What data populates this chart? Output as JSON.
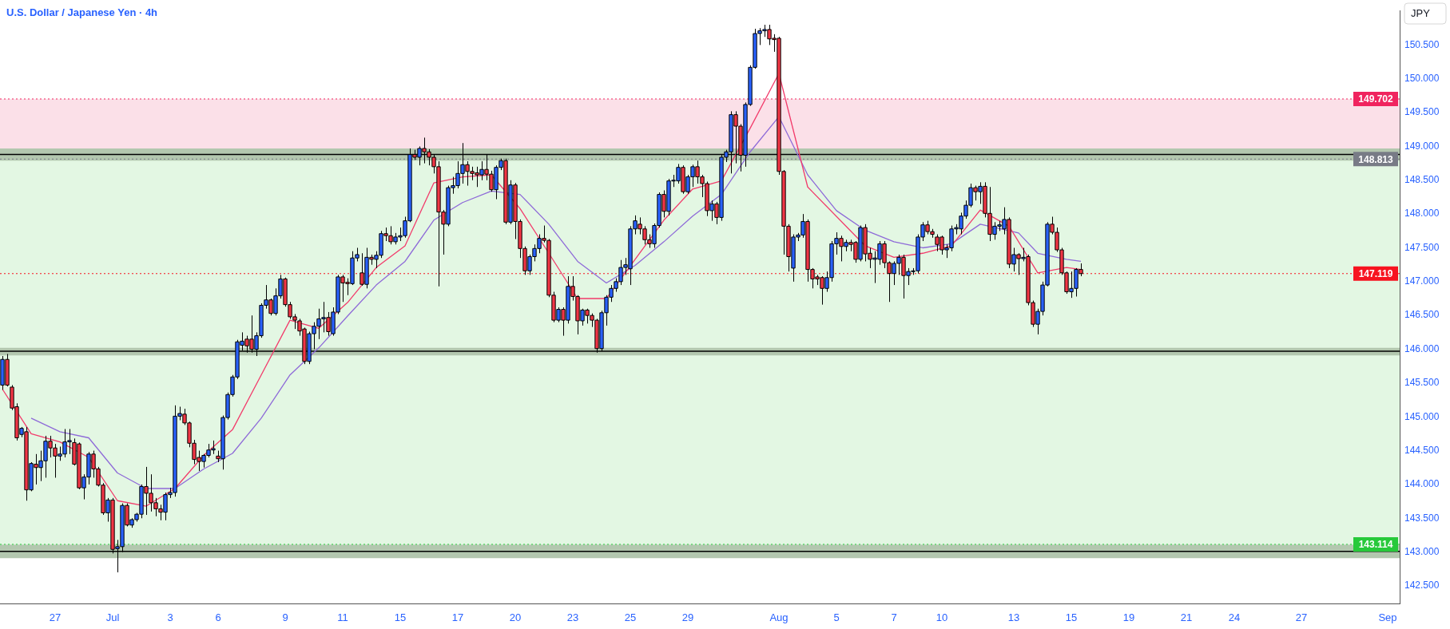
{
  "chart_data": {
    "type": "candlestick",
    "title": "U.S. Dollar / Japanese Yen · 4h",
    "ylabel": "JPY",
    "categories": [
      null,
      null,
      null,
      null,
      null,
      null,
      null,
      null,
      null,
      null,
      null,
      "27",
      null,
      null,
      null,
      null,
      null,
      null,
      null,
      null,
      null,
      null,
      null,
      "Jul",
      null,
      null,
      null,
      null,
      null,
      null,
      null,
      null,
      null,
      null,
      null,
      "3",
      null,
      null,
      null,
      null,
      null,
      null,
      null,
      null,
      null,
      "6",
      null,
      null,
      null,
      null,
      null,
      null,
      null,
      null,
      null,
      null,
      null,
      null,
      null,
      "9",
      null,
      null,
      null,
      null,
      null,
      null,
      null,
      null,
      null,
      null,
      null,
      "11",
      null,
      null,
      null,
      null,
      null,
      null,
      null,
      null,
      null,
      null,
      null,
      "15",
      null,
      null,
      null,
      null,
      null,
      null,
      null,
      null,
      null,
      null,
      null,
      "17",
      null,
      null,
      null,
      null,
      null,
      null,
      null,
      null,
      null,
      null,
      null,
      "20",
      null,
      null,
      null,
      null,
      null,
      null,
      null,
      null,
      null,
      null,
      null,
      "23",
      null,
      null,
      null,
      null,
      null,
      null,
      null,
      null,
      null,
      null,
      null,
      "25",
      null,
      null,
      null,
      null,
      null,
      null,
      null,
      null,
      null,
      null,
      null,
      "29",
      null,
      null,
      null,
      null,
      null,
      null,
      null,
      null,
      null,
      null,
      null,
      null,
      null,
      null,
      null,
      null,
      null,
      null,
      "Aug",
      null,
      null,
      null,
      null,
      null,
      null,
      null,
      null,
      null,
      null,
      null,
      "5",
      null,
      null,
      null,
      null,
      null,
      null,
      null,
      null,
      null,
      null,
      null,
      "7",
      null,
      null,
      null,
      null,
      null,
      null,
      null,
      null,
      null,
      "10",
      null,
      null,
      null,
      null,
      null,
      null,
      null,
      null,
      null,
      null,
      null,
      null,
      null,
      null,
      "13",
      null,
      null,
      null,
      null,
      null,
      null,
      null,
      null,
      null,
      null,
      null,
      "15",
      null,
      null,
      null,
      null,
      null,
      null,
      null,
      null,
      null,
      null,
      null,
      "19",
      null,
      null,
      null,
      null,
      null,
      null,
      null,
      null,
      null,
      null,
      null,
      "21",
      null,
      null,
      null,
      null,
      null,
      null,
      null,
      null,
      null,
      "24",
      null,
      null,
      null,
      null,
      null,
      null,
      null,
      null,
      null,
      null,
      null,
      null,
      null,
      "27",
      null,
      null,
      null,
      null,
      null,
      null,
      null,
      null,
      null,
      null,
      null,
      null,
      null,
      null,
      null,
      null,
      null,
      "Sep",
      null,
      null
    ],
    "ohlc": [
      [
        145.47,
        145.9,
        145.4,
        145.85
      ],
      [
        145.85,
        145.93,
        145.45,
        145.47
      ],
      [
        145.44,
        145.47,
        145.1,
        145.13
      ],
      [
        145.15,
        145.2,
        144.65,
        144.69
      ],
      [
        144.74,
        144.85,
        144.7,
        144.83
      ],
      [
        144.78,
        144.85,
        143.76,
        143.92
      ],
      [
        143.92,
        144.33,
        143.9,
        144.31
      ],
      [
        144.3,
        144.45,
        144.0,
        144.25
      ],
      [
        144.25,
        144.5,
        144.05,
        144.35
      ],
      [
        144.35,
        144.72,
        144.1,
        144.64
      ],
      [
        144.64,
        144.72,
        144.4,
        144.54
      ],
      [
        144.54,
        144.6,
        144.1,
        144.42
      ],
      [
        144.42,
        144.56,
        144.35,
        144.45
      ],
      [
        144.45,
        144.82,
        144.4,
        144.63
      ],
      [
        144.63,
        144.82,
        144.45,
        144.65
      ],
      [
        144.62,
        144.68,
        144.28,
        144.3
      ],
      [
        144.6,
        144.62,
        143.93,
        143.95
      ],
      [
        143.95,
        144.15,
        143.78,
        144.11
      ],
      [
        144.11,
        144.48,
        144.0,
        144.45
      ],
      [
        144.45,
        144.5,
        144.1,
        144.23
      ],
      [
        144.23,
        144.26,
        143.97,
        143.99
      ],
      [
        143.99,
        144.02,
        143.55,
        143.58
      ],
      [
        143.58,
        143.8,
        143.45,
        143.77
      ],
      [
        143.77,
        143.8,
        142.98,
        143.04
      ],
      [
        143.05,
        143.18,
        142.7,
        143.08
      ],
      [
        143.08,
        143.72,
        143.0,
        143.69
      ],
      [
        143.69,
        143.72,
        143.38,
        143.4
      ],
      [
        143.4,
        143.5,
        143.36,
        143.48
      ],
      [
        143.48,
        143.58,
        143.45,
        143.56
      ],
      [
        143.56,
        144.0,
        143.5,
        143.97
      ],
      [
        143.97,
        144.26,
        143.55,
        143.87
      ],
      [
        143.87,
        144.15,
        143.6,
        143.73
      ],
      [
        143.73,
        143.8,
        143.53,
        143.64
      ],
      [
        143.64,
        143.7,
        143.47,
        143.59
      ],
      [
        143.59,
        143.88,
        143.47,
        143.85
      ],
      [
        143.85,
        143.95,
        143.8,
        143.88
      ],
      [
        143.88,
        145.17,
        143.82,
        145.01
      ],
      [
        145.01,
        145.15,
        144.95,
        145.05
      ],
      [
        145.04,
        145.12,
        144.88,
        144.91
      ],
      [
        144.91,
        144.93,
        144.55,
        144.61
      ],
      [
        144.61,
        144.66,
        144.3,
        144.37
      ],
      [
        144.4,
        144.5,
        144.2,
        144.34
      ],
      [
        144.34,
        144.45,
        144.25,
        144.43
      ],
      [
        144.43,
        144.6,
        144.4,
        144.51
      ],
      [
        144.51,
        144.65,
        144.45,
        144.53
      ],
      [
        144.42,
        144.5,
        144.33,
        144.38
      ],
      [
        144.38,
        145.02,
        144.22,
        144.99
      ],
      [
        144.99,
        145.36,
        144.96,
        145.33
      ],
      [
        145.33,
        145.62,
        145.3,
        145.59
      ],
      [
        145.59,
        146.14,
        145.56,
        146.11
      ],
      [
        146.06,
        146.25,
        145.98,
        146.12
      ],
      [
        146.15,
        146.2,
        145.95,
        146.05
      ],
      [
        146.15,
        146.5,
        145.95,
        146.0
      ],
      [
        146.0,
        146.25,
        145.9,
        146.2
      ],
      [
        146.2,
        146.68,
        146.17,
        146.65
      ],
      [
        146.65,
        146.95,
        146.6,
        146.73
      ],
      [
        146.73,
        146.75,
        146.5,
        146.53
      ],
      [
        146.53,
        146.9,
        146.5,
        146.79
      ],
      [
        146.79,
        147.1,
        146.75,
        147.04
      ],
      [
        147.04,
        147.06,
        146.63,
        146.66
      ],
      [
        146.66,
        146.7,
        146.45,
        146.48
      ],
      [
        146.48,
        146.52,
        146.3,
        146.43
      ],
      [
        146.42,
        146.45,
        146.2,
        146.27
      ],
      [
        146.3,
        146.32,
        145.78,
        145.82
      ],
      [
        145.82,
        146.26,
        145.78,
        146.23
      ],
      [
        146.23,
        146.4,
        146.0,
        146.34
      ],
      [
        146.34,
        146.6,
        146.15,
        146.45
      ],
      [
        146.45,
        146.7,
        146.25,
        146.47
      ],
      [
        146.47,
        146.55,
        146.2,
        146.26
      ],
      [
        146.23,
        146.62,
        146.2,
        146.55
      ],
      [
        146.55,
        147.1,
        146.52,
        147.07
      ],
      [
        147.07,
        147.1,
        146.7,
        146.98
      ],
      [
        146.99,
        147.05,
        146.8,
        146.97
      ],
      [
        146.97,
        147.45,
        146.95,
        147.35
      ],
      [
        147.35,
        147.5,
        147.3,
        147.4
      ],
      [
        147.13,
        147.42,
        146.94,
        146.96
      ],
      [
        146.96,
        147.5,
        146.9,
        147.36
      ],
      [
        147.36,
        147.4,
        147.25,
        147.33
      ],
      [
        147.33,
        147.45,
        147.2,
        147.39
      ],
      [
        147.39,
        147.75,
        147.35,
        147.71
      ],
      [
        147.71,
        147.8,
        147.6,
        147.68
      ],
      [
        147.68,
        147.82,
        147.55,
        147.59
      ],
      [
        147.59,
        147.72,
        147.55,
        147.66
      ],
      [
        147.66,
        147.8,
        147.6,
        147.68
      ],
      [
        147.68,
        147.96,
        147.65,
        147.9
      ],
      [
        147.9,
        148.97,
        147.88,
        148.88
      ],
      [
        148.88,
        148.95,
        148.8,
        148.84
      ],
      [
        148.84,
        149.0,
        148.72,
        148.97
      ],
      [
        148.97,
        149.13,
        148.75,
        148.92
      ],
      [
        148.92,
        148.96,
        148.72,
        148.84
      ],
      [
        148.84,
        148.88,
        148.6,
        148.7
      ],
      [
        148.7,
        148.78,
        146.93,
        148.03
      ],
      [
        148.03,
        148.06,
        147.4,
        147.85
      ],
      [
        147.85,
        148.42,
        147.82,
        148.39
      ],
      [
        148.39,
        148.55,
        148.3,
        148.42
      ],
      [
        148.42,
        148.78,
        148.38,
        148.6
      ],
      [
        148.6,
        149.05,
        148.45,
        148.73
      ],
      [
        148.73,
        148.78,
        148.42,
        148.63
      ],
      [
        148.63,
        148.7,
        148.5,
        148.6
      ],
      [
        148.61,
        148.7,
        148.4,
        148.58
      ],
      [
        148.58,
        148.78,
        148.5,
        148.66
      ],
      [
        148.66,
        148.88,
        148.5,
        148.59
      ],
      [
        148.59,
        148.64,
        148.33,
        148.36
      ],
      [
        148.36,
        148.72,
        148.22,
        148.69
      ],
      [
        148.69,
        148.82,
        148.65,
        148.79
      ],
      [
        148.79,
        148.82,
        147.85,
        147.88
      ],
      [
        147.88,
        148.5,
        147.85,
        148.43
      ],
      [
        148.43,
        148.46,
        147.63,
        147.89
      ],
      [
        147.89,
        147.92,
        147.35,
        147.49
      ],
      [
        147.49,
        147.52,
        147.1,
        147.16
      ],
      [
        147.16,
        147.4,
        147.1,
        147.37
      ],
      [
        147.37,
        147.55,
        147.3,
        147.49
      ],
      [
        147.49,
        147.7,
        147.42,
        147.64
      ],
      [
        147.64,
        147.83,
        147.58,
        147.61
      ],
      [
        147.61,
        147.63,
        146.77,
        146.8
      ],
      [
        146.8,
        146.85,
        146.4,
        146.43
      ],
      [
        146.43,
        146.62,
        146.4,
        146.59
      ],
      [
        146.59,
        146.62,
        146.2,
        146.43
      ],
      [
        146.43,
        147.08,
        146.38,
        146.93
      ],
      [
        146.93,
        147.08,
        146.72,
        146.78
      ],
      [
        146.78,
        146.8,
        146.22,
        146.42
      ],
      [
        146.42,
        146.6,
        146.35,
        146.58
      ],
      [
        146.58,
        146.6,
        146.38,
        146.5
      ],
      [
        146.5,
        146.53,
        146.33,
        146.43
      ],
      [
        146.43,
        146.45,
        145.95,
        146.01
      ],
      [
        146.01,
        146.57,
        145.97,
        146.54
      ],
      [
        146.54,
        146.8,
        146.35,
        146.77
      ],
      [
        146.77,
        146.95,
        146.7,
        146.9
      ],
      [
        146.9,
        147.05,
        146.85,
        147.0
      ],
      [
        147.0,
        147.32,
        146.95,
        147.21
      ],
      [
        147.21,
        147.35,
        147.1,
        147.25
      ],
      [
        147.19,
        147.82,
        146.95,
        147.78
      ],
      [
        147.78,
        147.98,
        147.7,
        147.9
      ],
      [
        147.85,
        147.95,
        147.7,
        147.78
      ],
      [
        147.78,
        147.82,
        147.55,
        147.62
      ],
      [
        147.62,
        147.7,
        147.5,
        147.56
      ],
      [
        147.56,
        147.86,
        147.5,
        147.83
      ],
      [
        147.83,
        148.32,
        147.8,
        148.29
      ],
      [
        148.29,
        148.35,
        147.95,
        148.04
      ],
      [
        148.04,
        148.52,
        147.98,
        148.49
      ],
      [
        148.49,
        148.58,
        148.4,
        148.5
      ],
      [
        148.49,
        148.74,
        148.45,
        148.69
      ],
      [
        148.69,
        148.72,
        148.3,
        148.33
      ],
      [
        148.33,
        148.58,
        148.3,
        148.55
      ],
      [
        148.55,
        148.73,
        148.4,
        148.7
      ],
      [
        148.7,
        148.79,
        148.45,
        148.55
      ],
      [
        148.55,
        148.58,
        148.25,
        148.45
      ],
      [
        148.45,
        148.48,
        147.97,
        148.05
      ],
      [
        148.05,
        148.2,
        147.9,
        148.15
      ],
      [
        148.15,
        148.18,
        147.85,
        147.95
      ],
      [
        147.95,
        148.88,
        147.9,
        148.84
      ],
      [
        148.84,
        148.95,
        148.77,
        148.92
      ],
      [
        148.92,
        149.52,
        148.6,
        149.47
      ],
      [
        149.47,
        149.52,
        148.75,
        149.3
      ],
      [
        149.3,
        149.33,
        148.63,
        148.87
      ],
      [
        148.87,
        149.65,
        148.7,
        149.62
      ],
      [
        149.62,
        150.2,
        149.6,
        150.17
      ],
      [
        150.17,
        150.74,
        150.15,
        150.67
      ],
      [
        150.67,
        150.75,
        150.5,
        150.71
      ],
      [
        150.71,
        150.8,
        150.62,
        150.73
      ],
      [
        150.73,
        150.8,
        150.5,
        150.59
      ],
      [
        150.6,
        150.66,
        150.4,
        150.58
      ],
      [
        150.6,
        150.62,
        148.58,
        148.63
      ],
      [
        148.63,
        148.65,
        147.4,
        147.82
      ],
      [
        147.82,
        147.85,
        147.15,
        147.37
      ],
      [
        147.2,
        147.7,
        147.0,
        147.66
      ],
      [
        147.66,
        147.72,
        147.6,
        147.69
      ],
      [
        147.69,
        148.0,
        147.65,
        147.89
      ],
      [
        147.89,
        147.92,
        147.0,
        147.18
      ],
      [
        147.18,
        147.2,
        146.9,
        147.04
      ],
      [
        147.07,
        147.1,
        146.95,
        147.04
      ],
      [
        147.06,
        147.08,
        146.66,
        146.9
      ],
      [
        146.9,
        147.15,
        146.85,
        147.06
      ],
      [
        147.06,
        147.6,
        147.0,
        147.56
      ],
      [
        147.56,
        147.73,
        147.4,
        147.64
      ],
      [
        147.64,
        147.68,
        147.3,
        147.52
      ],
      [
        147.52,
        147.62,
        147.45,
        147.58
      ],
      [
        147.58,
        147.62,
        147.45,
        147.55
      ],
      [
        147.58,
        147.6,
        147.28,
        147.33
      ],
      [
        147.33,
        147.83,
        147.3,
        147.8
      ],
      [
        147.8,
        147.85,
        147.3,
        147.41
      ],
      [
        147.42,
        147.5,
        147.2,
        147.33
      ],
      [
        147.33,
        147.45,
        146.98,
        147.35
      ],
      [
        147.33,
        147.6,
        147.25,
        147.56
      ],
      [
        147.56,
        147.6,
        147.2,
        147.28
      ],
      [
        147.28,
        147.3,
        146.7,
        147.12
      ],
      [
        147.12,
        147.3,
        146.95,
        147.27
      ],
      [
        147.27,
        147.4,
        147.1,
        147.36
      ],
      [
        147.36,
        147.4,
        146.75,
        147.09
      ],
      [
        147.09,
        147.2,
        146.95,
        147.15
      ],
      [
        147.15,
        147.2,
        147.1,
        147.16
      ],
      [
        147.16,
        147.7,
        147.12,
        147.66
      ],
      [
        147.66,
        147.88,
        147.6,
        147.84
      ],
      [
        147.84,
        147.9,
        147.7,
        147.74
      ],
      [
        147.74,
        147.78,
        147.65,
        147.7
      ],
      [
        147.66,
        147.7,
        147.45,
        147.55
      ],
      [
        147.66,
        147.68,
        147.4,
        147.47
      ],
      [
        147.47,
        147.55,
        147.35,
        147.5
      ],
      [
        147.5,
        147.83,
        147.45,
        147.78
      ],
      [
        147.78,
        147.85,
        147.7,
        147.8
      ],
      [
        147.78,
        148.02,
        147.7,
        147.97
      ],
      [
        147.97,
        148.2,
        147.93,
        148.13
      ],
      [
        148.13,
        148.45,
        148.1,
        148.39
      ],
      [
        148.39,
        148.42,
        148.2,
        148.33
      ],
      [
        148.33,
        148.47,
        148.15,
        148.41
      ],
      [
        148.41,
        148.47,
        147.95,
        148.01
      ],
      [
        148.01,
        148.4,
        147.6,
        147.7
      ],
      [
        147.7,
        147.88,
        147.62,
        147.82
      ],
      [
        147.82,
        147.9,
        147.75,
        147.84
      ],
      [
        147.78,
        148.1,
        147.7,
        147.92
      ],
      [
        147.92,
        147.95,
        147.2,
        147.26
      ],
      [
        147.26,
        147.5,
        147.15,
        147.4
      ],
      [
        147.4,
        147.42,
        147.1,
        147.34
      ],
      [
        147.34,
        147.5,
        147.3,
        147.36
      ],
      [
        147.37,
        147.4,
        146.65,
        146.69
      ],
      [
        146.69,
        146.72,
        146.33,
        146.37
      ],
      [
        146.37,
        146.6,
        146.22,
        146.56
      ],
      [
        146.56,
        147.0,
        146.5,
        146.95
      ],
      [
        146.95,
        147.88,
        146.93,
        147.85
      ],
      [
        147.85,
        147.96,
        147.7,
        147.73
      ],
      [
        147.73,
        147.8,
        147.44,
        147.47
      ],
      [
        147.47,
        147.5,
        147.1,
        147.13
      ],
      [
        147.13,
        147.15,
        146.82,
        146.85
      ],
      [
        146.85,
        147.15,
        146.76,
        146.9
      ],
      [
        146.9,
        147.2,
        146.78,
        147.18
      ],
      [
        147.18,
        147.27,
        147.08,
        147.119
      ],
      null,
      null,
      null,
      null,
      null,
      null,
      null,
      null,
      null,
      null,
      null,
      null,
      null,
      null,
      null,
      null,
      null,
      null,
      null,
      null,
      null,
      null,
      null,
      null,
      null,
      null,
      null,
      null,
      null,
      null,
      null,
      null,
      null,
      null,
      null,
      null,
      null,
      null,
      null,
      null,
      null,
      null,
      null,
      null,
      null,
      null,
      null,
      null,
      null,
      null,
      null,
      null,
      null,
      null,
      null,
      null,
      null,
      null,
      null,
      null,
      null,
      null,
      null,
      null,
      null,
      null
    ],
    "series": [
      {
        "type": "line",
        "color": "#f23b6b",
        "values": [
          145.41,
          null,
          null,
          null,
          null,
          null,
          144.75,
          null,
          null,
          null,
          null,
          null,
          144.63,
          null,
          null,
          null,
          null,
          null,
          144.4,
          null,
          null,
          null,
          null,
          null,
          143.76,
          null,
          null,
          null,
          null,
          null,
          143.68,
          null,
          null,
          null,
          null,
          null,
          143.94,
          null,
          null,
          null,
          null,
          null,
          144.43,
          null,
          null,
          null,
          null,
          null,
          144.81,
          null,
          null,
          null,
          null,
          null,
          145.62,
          null,
          null,
          null,
          null,
          null,
          146.43,
          null,
          null,
          null,
          null,
          null,
          146.31,
          null,
          null,
          null,
          null,
          null,
          146.69,
          null,
          null,
          null,
          null,
          null,
          147.21,
          null,
          null,
          null,
          null,
          null,
          147.53,
          null,
          null,
          null,
          null,
          null,
          148.46,
          null,
          null,
          null,
          null,
          null,
          148.55,
          null,
          null,
          null,
          null,
          null,
          148.58,
          null,
          null,
          null,
          null,
          null,
          148.08,
          null,
          null,
          null,
          null,
          null,
          147.42,
          null,
          null,
          null,
          null,
          null,
          146.75,
          null,
          null,
          null,
          null,
          null,
          146.75,
          null,
          null,
          null,
          null,
          null,
          147.33,
          null,
          null,
          null,
          null,
          null,
          147.91,
          null,
          null,
          null,
          null,
          null,
          148.37,
          null,
          null,
          null,
          null,
          null,
          148.49,
          null,
          null,
          null,
          null,
          null,
          149.27,
          null,
          null,
          null,
          null,
          null,
          150.08,
          null,
          null,
          null,
          null,
          null,
          148.4,
          null,
          null,
          null,
          null,
          null,
          null,
          null,
          null,
          null,
          null,
          null,
          147.53,
          null,
          null,
          null,
          null,
          null,
          147.36,
          null,
          null,
          null,
          null,
          null,
          147.42,
          null,
          null,
          null,
          null,
          null,
          147.53,
          null,
          null,
          null,
          null,
          null,
          148.06,
          null,
          null,
          null,
          null,
          null,
          147.82,
          null,
          null,
          null,
          null,
          null,
          147.13,
          null,
          null,
          null,
          null,
          null,
          147.21,
          null,
          null,
          147.18,
          null,
          null,
          null,
          null,
          null,
          null,
          null,
          null,
          null,
          null,
          null,
          null,
          null,
          null,
          null,
          null,
          null,
          null,
          null,
          null,
          null,
          null,
          null,
          null,
          null,
          null,
          null,
          null,
          null,
          null,
          null,
          null,
          null,
          null,
          null,
          null,
          null,
          null,
          null,
          null,
          null,
          null,
          null,
          null,
          null,
          null,
          null,
          null,
          null,
          null,
          null,
          null,
          null,
          null,
          null,
          null,
          null,
          null,
          null,
          null,
          null,
          null,
          null,
          null,
          null,
          null
        ]
      },
      {
        "type": "line",
        "color": "#8e6ad8",
        "values": [
          null,
          null,
          null,
          null,
          null,
          null,
          144.98,
          null,
          null,
          null,
          null,
          null,
          144.78,
          null,
          null,
          null,
          null,
          null,
          144.69,
          null,
          null,
          null,
          null,
          null,
          144.17,
          null,
          null,
          null,
          null,
          null,
          143.94,
          null,
          null,
          null,
          null,
          null,
          143.94,
          null,
          null,
          null,
          null,
          null,
          144.23,
          null,
          null,
          null,
          null,
          null,
          144.46,
          null,
          null,
          null,
          null,
          null,
          144.98,
          null,
          null,
          null,
          null,
          null,
          145.62,
          null,
          null,
          null,
          null,
          null,
          146.02,
          null,
          null,
          null,
          null,
          null,
          146.49,
          null,
          null,
          null,
          null,
          null,
          146.95,
          null,
          null,
          null,
          null,
          null,
          147.3,
          null,
          null,
          null,
          null,
          null,
          147.91,
          null,
          null,
          null,
          null,
          null,
          148.17,
          null,
          null,
          null,
          null,
          null,
          148.34,
          null,
          null,
          null,
          null,
          null,
          148.29,
          null,
          null,
          null,
          null,
          null,
          147.85,
          null,
          null,
          null,
          null,
          null,
          147.3,
          null,
          null,
          null,
          null,
          null,
          146.98,
          null,
          null,
          null,
          null,
          null,
          147.24,
          null,
          null,
          null,
          null,
          null,
          147.59,
          null,
          null,
          null,
          null,
          null,
          147.97,
          null,
          null,
          null,
          null,
          null,
          148.29,
          null,
          null,
          null,
          null,
          null,
          148.92,
          null,
          null,
          null,
          null,
          null,
          149.44,
          null,
          null,
          null,
          null,
          null,
          148.58,
          null,
          null,
          null,
          null,
          null,
          148.05,
          null,
          null,
          null,
          null,
          null,
          147.76,
          null,
          null,
          null,
          null,
          null,
          147.59,
          null,
          null,
          null,
          null,
          null,
          147.5,
          null,
          null,
          null,
          null,
          null,
          147.56,
          null,
          null,
          null,
          null,
          null,
          147.85,
          null,
          null,
          null,
          null,
          null,
          null,
          null,
          147.72,
          null,
          null,
          null,
          147.42,
          null,
          null,
          null,
          null,
          null,
          147.33,
          null,
          null,
          147.3,
          null,
          null,
          null,
          null,
          null,
          null,
          null,
          null,
          null,
          null,
          null,
          null,
          null,
          null,
          null,
          null,
          null,
          null,
          null,
          null,
          null,
          null,
          null,
          null,
          null,
          null,
          null,
          null,
          null,
          null,
          null,
          null,
          null,
          null,
          null,
          null,
          null,
          null,
          null,
          null,
          null,
          null,
          null,
          null,
          null,
          null,
          null,
          null,
          null,
          null,
          null,
          null,
          null,
          null,
          null,
          null,
          null,
          null,
          null,
          null,
          null,
          null,
          null,
          null,
          null,
          null
        ]
      }
    ],
    "ylim": [
      142.24,
      151.01
    ],
    "yticks": [
      {
        "value": 142.5,
        "label": "142.500"
      },
      {
        "value": 143,
        "label": "143.000"
      },
      {
        "value": 143.5,
        "label": "143.500"
      },
      {
        "value": 144,
        "label": "144.000"
      },
      {
        "value": 144.5,
        "label": "144.500"
      },
      {
        "value": 145,
        "label": "145.000"
      },
      {
        "value": 145.5,
        "label": "145.500"
      },
      {
        "value": 146,
        "label": "146.000"
      },
      {
        "value": 146.5,
        "label": "146.500"
      },
      {
        "value": 147,
        "label": "147.000"
      },
      {
        "value": 147.5,
        "label": "147.500"
      },
      {
        "value": 148,
        "label": "148.000"
      },
      {
        "value": 148.5,
        "label": "148.500"
      },
      {
        "value": 149,
        "label": "149.000"
      },
      {
        "value": 149.5,
        "label": "149.500"
      },
      {
        "value": 150,
        "label": "150.000"
      },
      {
        "value": 150.5,
        "label": "150.500"
      }
    ],
    "bands": [
      {
        "axis": "y",
        "from": 148.813,
        "to": 149.702,
        "color": "#fbe0e8"
      },
      {
        "axis": "y",
        "from": 143.114,
        "to": 148.813,
        "color": "#e3f7e3"
      },
      {
        "axis": "y",
        "from": 148.79,
        "to": 148.97,
        "color": "#b3c7af"
      },
      {
        "axis": "y",
        "from": 145.91,
        "to": 146.02,
        "color": "#b3c7af"
      },
      {
        "axis": "y",
        "from": 142.91,
        "to": 143.11,
        "color": "#b3c7af"
      }
    ],
    "ref_lines": [
      {
        "axis": "y",
        "value": 148.88,
        "color": "#000000",
        "line_style": "solid"
      },
      {
        "axis": "y",
        "value": 145.97,
        "color": "#000000",
        "line_style": "solid"
      },
      {
        "axis": "y",
        "value": 143.01,
        "color": "#000000",
        "line_style": "solid"
      },
      {
        "axis": "y",
        "value": 149.702,
        "label": "149.702",
        "color": "#f0245f",
        "line_style": "dotted"
      },
      {
        "axis": "y",
        "value": 148.813,
        "label": "148.813",
        "color": "#787b86",
        "line_style": "dotted"
      },
      {
        "axis": "y",
        "value": 147.119,
        "label": "147.119",
        "color": "#f7131f",
        "line_style": "dotted"
      },
      {
        "axis": "y",
        "value": 143.114,
        "label": "143.114",
        "color": "#27c93a",
        "line_style": "dotted"
      }
    ]
  }
}
